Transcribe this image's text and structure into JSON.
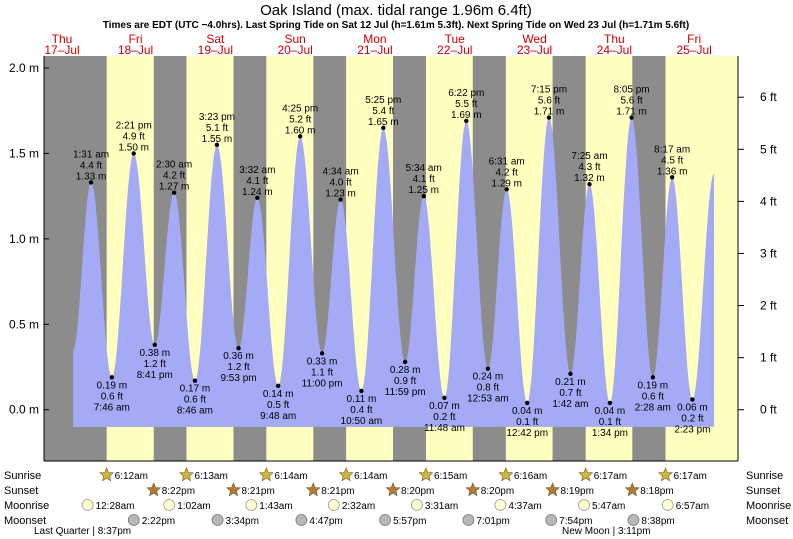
{
  "chart_data": {
    "type": "area",
    "title": "Oak Island (max. tidal range 1.96m 6.4ft)",
    "subtitle": "Times are EDT (UTC −4.0hrs). Last Spring Tide on Sat 12 Jul (h=1.61m 5.3ft). Next Spring Tide on Wed 23 Jul (h=1.71m 5.6ft)",
    "ylabel_left": "m",
    "ylabel_right": "ft",
    "ylim": [
      -0.3,
      2.07
    ],
    "y_ticks_m": [
      "0.0 m",
      "0.5 m",
      "1.0 m",
      "1.5 m",
      "2.0 m"
    ],
    "y_ticks_ft": [
      "0 ft",
      "1 ft",
      "2 ft",
      "3 ft",
      "4 ft",
      "5 ft",
      "6 ft"
    ],
    "days": [
      {
        "dow": "Thu",
        "date": "17–Jul"
      },
      {
        "dow": "Fri",
        "date": "18–Jul"
      },
      {
        "dow": "Sat",
        "date": "19–Jul"
      },
      {
        "dow": "Sun",
        "date": "20–Jul"
      },
      {
        "dow": "Mon",
        "date": "21–Jul"
      },
      {
        "dow": "Tue",
        "date": "22–Jul"
      },
      {
        "dow": "Wed",
        "date": "23–Jul"
      },
      {
        "dow": "Thu",
        "date": "24–Jul"
      },
      {
        "dow": "Fri",
        "date": "25–Jul"
      }
    ],
    "tides": [
      {
        "day": 0,
        "time": "1:31 am",
        "m": 1.33,
        "ft": "4.4 ft",
        "h": 1.52,
        "type": "high"
      },
      {
        "day": 0,
        "time": "7:46 am",
        "m": 0.19,
        "ft": "0.6 ft",
        "h": 7.77,
        "type": "low"
      },
      {
        "day": 0,
        "time": "2:21 pm",
        "m": 1.5,
        "ft": "4.9 ft",
        "h": 14.35,
        "type": "high"
      },
      {
        "day": 0,
        "time": "8:41 pm",
        "m": 0.38,
        "ft": "1.2 ft",
        "h": 20.68,
        "type": "low"
      },
      {
        "day": 1,
        "time": "2:30 am",
        "m": 1.27,
        "ft": "4.2 ft",
        "h": 26.5,
        "type": "high"
      },
      {
        "day": 1,
        "time": "8:46 am",
        "m": 0.17,
        "ft": "0.6 ft",
        "h": 32.77,
        "type": "low"
      },
      {
        "day": 1,
        "time": "3:23 pm",
        "m": 1.55,
        "ft": "5.1 ft",
        "h": 39.38,
        "type": "high"
      },
      {
        "day": 1,
        "time": "9:53 pm",
        "m": 0.36,
        "ft": "1.2 ft",
        "h": 45.88,
        "type": "low"
      },
      {
        "day": 2,
        "time": "3:32 am",
        "m": 1.24,
        "ft": "4.1 ft",
        "h": 51.53,
        "type": "high"
      },
      {
        "day": 2,
        "time": "9:48 am",
        "m": 0.14,
        "ft": "0.5 ft",
        "h": 57.8,
        "type": "low"
      },
      {
        "day": 2,
        "time": "4:25 pm",
        "m": 1.6,
        "ft": "5.2 ft",
        "h": 64.42,
        "type": "high"
      },
      {
        "day": 2,
        "time": "11:00 pm",
        "m": 0.33,
        "ft": "1.1 ft",
        "h": 71.0,
        "type": "low"
      },
      {
        "day": 3,
        "time": "4:34 am",
        "m": 1.23,
        "ft": "4.0 ft",
        "h": 76.57,
        "type": "high"
      },
      {
        "day": 3,
        "time": "10:50 am",
        "m": 0.11,
        "ft": "0.4 ft",
        "h": 82.83,
        "type": "low"
      },
      {
        "day": 3,
        "time": "5:25 pm",
        "m": 1.65,
        "ft": "5.4 ft",
        "h": 89.42,
        "type": "high"
      },
      {
        "day": 3,
        "time": "11:59 pm",
        "m": 0.28,
        "ft": "0.9 ft",
        "h": 95.98,
        "type": "low"
      },
      {
        "day": 4,
        "time": "5:34 am",
        "m": 1.25,
        "ft": "4.1 ft",
        "h": 101.57,
        "type": "high"
      },
      {
        "day": 4,
        "time": "11:48 am",
        "m": 0.07,
        "ft": "0.2 ft",
        "h": 107.8,
        "type": "low"
      },
      {
        "day": 4,
        "time": "6:22 pm",
        "m": 1.69,
        "ft": "5.5 ft",
        "h": 114.37,
        "type": "high"
      },
      {
        "day": 5,
        "time": "12:53 am",
        "m": 0.24,
        "ft": "0.8 ft",
        "h": 120.88,
        "type": "low"
      },
      {
        "day": 5,
        "time": "6:31 am",
        "m": 1.29,
        "ft": "4.2 ft",
        "h": 126.52,
        "type": "high"
      },
      {
        "day": 5,
        "time": "12:42 pm",
        "m": 0.04,
        "ft": "0.1 ft",
        "h": 132.7,
        "type": "low"
      },
      {
        "day": 5,
        "time": "7:15 pm",
        "m": 1.71,
        "ft": "5.6 ft",
        "h": 139.25,
        "type": "high"
      },
      {
        "day": 6,
        "time": "1:42 am",
        "m": 0.21,
        "ft": "0.7 ft",
        "h": 145.7,
        "type": "low"
      },
      {
        "day": 6,
        "time": "7:25 am",
        "m": 1.32,
        "ft": "4.3 ft",
        "h": 151.42,
        "type": "high"
      },
      {
        "day": 6,
        "time": "1:34 pm",
        "m": 0.04,
        "ft": "0.1 ft",
        "h": 157.57,
        "type": "low"
      },
      {
        "day": 6,
        "time": "8:05 pm",
        "m": 1.71,
        "ft": "5.6 ft",
        "h": 164.08,
        "type": "high"
      },
      {
        "day": 7,
        "time": "2:28 am",
        "m": 0.19,
        "ft": "0.6 ft",
        "h": 170.47,
        "type": "low"
      },
      {
        "day": 7,
        "time": "8:17 am",
        "m": 1.36,
        "ft": "4.5 ft",
        "h": 176.28,
        "type": "high"
      },
      {
        "day": 7,
        "time": "2:23 pm",
        "m": 0.06,
        "ft": "0.2 ft",
        "h": 182.38,
        "type": "low"
      }
    ],
    "sunrise": [
      "6:12am",
      "6:13am",
      "6:14am",
      "6:14am",
      "6:15am",
      "6:16am",
      "6:17am",
      "6:17am"
    ],
    "sunset": [
      "8:22pm",
      "8:21pm",
      "8:21pm",
      "8:20pm",
      "8:20pm",
      "8:19pm",
      "8:18pm"
    ],
    "moonrise": [
      "12:28am",
      "1:02am",
      "1:43am",
      "2:32am",
      "3:31am",
      "4:37am",
      "5:47am",
      "6:57am"
    ],
    "moonset": [
      "2:22pm",
      "3:34pm",
      "4:47pm",
      "5:57pm",
      "7:01pm",
      "7:54pm",
      "8:38pm"
    ],
    "row_labels": {
      "sunrise": "Sunrise",
      "sunset": "Sunset",
      "moonrise": "Moonrise",
      "moonset": "Moonset"
    },
    "moon_phases": [
      {
        "label": "Last Quarter",
        "time": "8:37pm"
      },
      {
        "label": "New Moon",
        "time": "3:11pm"
      }
    ]
  },
  "colors": {
    "night": "#8c8c8c",
    "day": "#ffffc0",
    "water": "#a4aaf5",
    "red_label": "#cc0000",
    "sun_gold": "#d4b43a",
    "sunset_bronze": "#b07a3a",
    "moonrise_fill": "#ffffd0",
    "moonset_fill": "#b8b8b8"
  }
}
